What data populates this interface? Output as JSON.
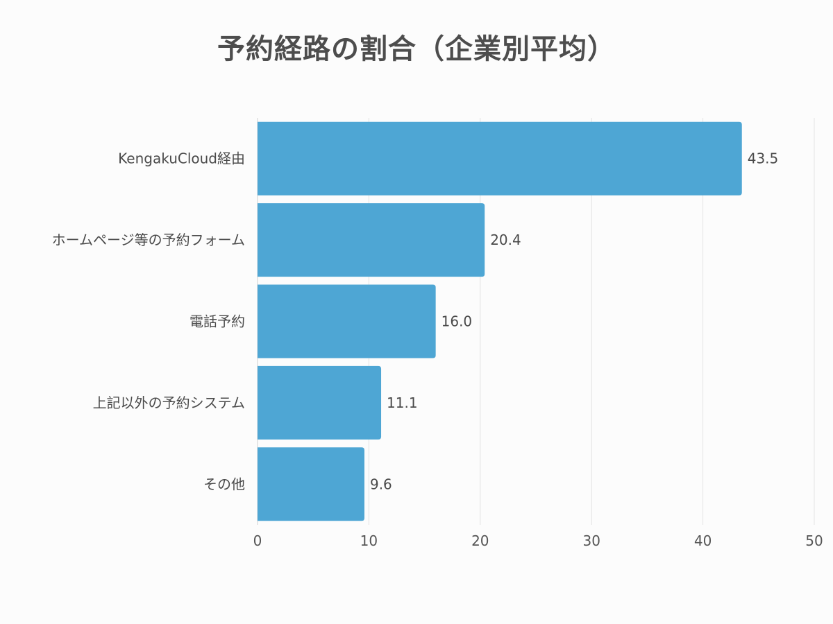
{
  "chart_data": {
    "type": "bar",
    "orientation": "horizontal",
    "title": "予約経路の割合（企業別平均）",
    "categories": [
      "KengakuCloud経由",
      "ホームページ等の予約フォーム",
      "電話予約",
      "上記以外の予約システム",
      "その他"
    ],
    "values": [
      43.5,
      20.4,
      16.0,
      11.1,
      9.6
    ],
    "value_labels": [
      "43.5",
      "20.4",
      "16.0",
      "11.1",
      "9.6"
    ],
    "xlim": [
      0,
      50
    ],
    "x_ticks": [
      "0",
      "10",
      "20",
      "30",
      "40",
      "50"
    ],
    "grid": true,
    "legend": "none",
    "bar_color": "#4ea6d4"
  }
}
